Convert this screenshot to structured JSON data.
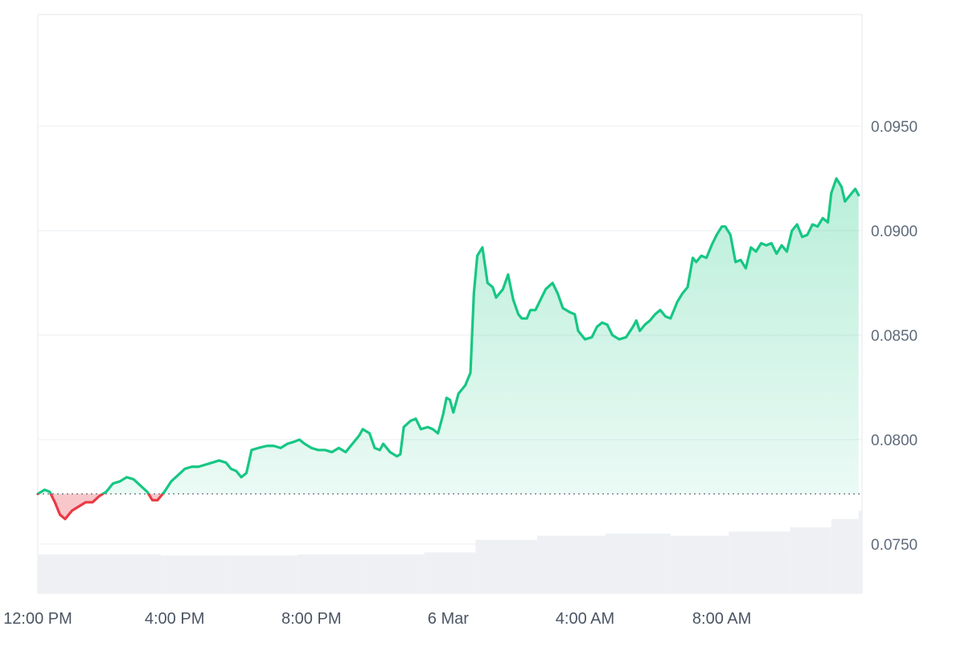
{
  "chart_data": {
    "type": "area",
    "title": "",
    "xlabel": "",
    "ylabel": "",
    "x_ticks": [
      "12:00 PM",
      "4:00 PM",
      "8:00 PM",
      "6 Mar",
      "4:00 AM",
      "8:00 AM"
    ],
    "x_tick_hours": [
      0,
      4,
      8,
      12,
      16,
      20
    ],
    "y_ticks": [
      "0.0950",
      "0.0900",
      "0.0850",
      "0.0800",
      "0.0750"
    ],
    "y_tick_values": [
      0.095,
      0.09,
      0.085,
      0.08,
      0.075
    ],
    "ylim": [
      0.07265,
      0.10035
    ],
    "xlim_hours": [
      0,
      24.1
    ],
    "grid": true,
    "legend": "none",
    "baseline": 0.0774,
    "colors": {
      "up_line": "#16c784",
      "up_fill_top": "#16c784",
      "down_line": "#ea3943",
      "down_fill": "#f6b4b8",
      "grid": "#eef0f3",
      "baseline_dots": "#6b7280",
      "volume": "#eef0f4",
      "frame": "#e5e7eb"
    },
    "series": [
      {
        "values": [
          [
            0.0,
            0.0774
          ],
          [
            0.2,
            0.0776
          ],
          [
            0.35,
            0.0775
          ],
          [
            0.5,
            0.077
          ],
          [
            0.65,
            0.0764
          ],
          [
            0.8,
            0.0762
          ],
          [
            1.0,
            0.0766
          ],
          [
            1.2,
            0.0768
          ],
          [
            1.4,
            0.077
          ],
          [
            1.6,
            0.077
          ],
          [
            1.8,
            0.0773
          ],
          [
            2.0,
            0.0775
          ],
          [
            2.2,
            0.0779
          ],
          [
            2.4,
            0.078
          ],
          [
            2.6,
            0.0782
          ],
          [
            2.8,
            0.0781
          ],
          [
            3.0,
            0.0778
          ],
          [
            3.2,
            0.0775
          ],
          [
            3.35,
            0.0771
          ],
          [
            3.5,
            0.0771
          ],
          [
            3.7,
            0.0775
          ],
          [
            3.9,
            0.078
          ],
          [
            4.1,
            0.0783
          ],
          [
            4.3,
            0.0786
          ],
          [
            4.5,
            0.0787
          ],
          [
            4.7,
            0.0787
          ],
          [
            4.9,
            0.0788
          ],
          [
            5.1,
            0.0789
          ],
          [
            5.3,
            0.079
          ],
          [
            5.5,
            0.0789
          ],
          [
            5.65,
            0.0786
          ],
          [
            5.8,
            0.0785
          ],
          [
            5.95,
            0.0782
          ],
          [
            6.1,
            0.0784
          ],
          [
            6.25,
            0.0795
          ],
          [
            6.45,
            0.0796
          ],
          [
            6.7,
            0.0797
          ],
          [
            6.9,
            0.0797
          ],
          [
            7.1,
            0.0796
          ],
          [
            7.3,
            0.0798
          ],
          [
            7.5,
            0.0799
          ],
          [
            7.65,
            0.08
          ],
          [
            7.8,
            0.0798
          ],
          [
            8.0,
            0.0796
          ],
          [
            8.2,
            0.0795
          ],
          [
            8.4,
            0.0795
          ],
          [
            8.6,
            0.0794
          ],
          [
            8.8,
            0.0796
          ],
          [
            9.0,
            0.0794
          ],
          [
            9.2,
            0.0798
          ],
          [
            9.4,
            0.0802
          ],
          [
            9.5,
            0.0805
          ],
          [
            9.7,
            0.0803
          ],
          [
            9.85,
            0.0796
          ],
          [
            10.0,
            0.0795
          ],
          [
            10.1,
            0.0798
          ],
          [
            10.3,
            0.0794
          ],
          [
            10.5,
            0.0792
          ],
          [
            10.6,
            0.0793
          ],
          [
            10.7,
            0.0806
          ],
          [
            10.9,
            0.0809
          ],
          [
            11.05,
            0.081
          ],
          [
            11.2,
            0.0805
          ],
          [
            11.4,
            0.0806
          ],
          [
            11.55,
            0.0805
          ],
          [
            11.7,
            0.0803
          ],
          [
            11.85,
            0.0812
          ],
          [
            11.95,
            0.082
          ],
          [
            12.05,
            0.0819
          ],
          [
            12.15,
            0.0813
          ],
          [
            12.3,
            0.0822
          ],
          [
            12.5,
            0.0826
          ],
          [
            12.65,
            0.0832
          ],
          [
            12.75,
            0.087
          ],
          [
            12.85,
            0.0888
          ],
          [
            13.0,
            0.0892
          ],
          [
            13.15,
            0.0875
          ],
          [
            13.3,
            0.0873
          ],
          [
            13.4,
            0.0868
          ],
          [
            13.6,
            0.0872
          ],
          [
            13.75,
            0.0879
          ],
          [
            13.9,
            0.0867
          ],
          [
            14.05,
            0.086
          ],
          [
            14.15,
            0.0858
          ],
          [
            14.3,
            0.0858
          ],
          [
            14.4,
            0.0862
          ],
          [
            14.55,
            0.0862
          ],
          [
            14.7,
            0.0867
          ],
          [
            14.85,
            0.0872
          ],
          [
            15.05,
            0.0875
          ],
          [
            15.2,
            0.087
          ],
          [
            15.35,
            0.0863
          ],
          [
            15.55,
            0.0861
          ],
          [
            15.7,
            0.086
          ],
          [
            15.8,
            0.0852
          ],
          [
            16.0,
            0.0848
          ],
          [
            16.2,
            0.0849
          ],
          [
            16.35,
            0.0854
          ],
          [
            16.5,
            0.0856
          ],
          [
            16.65,
            0.0855
          ],
          [
            16.8,
            0.085
          ],
          [
            17.0,
            0.0848
          ],
          [
            17.2,
            0.0849
          ],
          [
            17.4,
            0.0854
          ],
          [
            17.5,
            0.0857
          ],
          [
            17.6,
            0.0852
          ],
          [
            17.75,
            0.0855
          ],
          [
            17.9,
            0.0857
          ],
          [
            18.05,
            0.086
          ],
          [
            18.2,
            0.0862
          ],
          [
            18.35,
            0.0859
          ],
          [
            18.5,
            0.0858
          ],
          [
            18.7,
            0.0866
          ],
          [
            18.85,
            0.087
          ],
          [
            19.0,
            0.0873
          ],
          [
            19.15,
            0.0887
          ],
          [
            19.25,
            0.0885
          ],
          [
            19.4,
            0.0888
          ],
          [
            19.55,
            0.0887
          ],
          [
            19.7,
            0.0893
          ],
          [
            19.85,
            0.0898
          ],
          [
            20.0,
            0.0902
          ],
          [
            20.1,
            0.0902
          ],
          [
            20.25,
            0.0898
          ],
          [
            20.4,
            0.0885
          ],
          [
            20.55,
            0.0886
          ],
          [
            20.7,
            0.0882
          ],
          [
            20.85,
            0.0892
          ],
          [
            21.0,
            0.089
          ],
          [
            21.15,
            0.0894
          ],
          [
            21.3,
            0.0893
          ],
          [
            21.45,
            0.0894
          ],
          [
            21.6,
            0.0889
          ],
          [
            21.75,
            0.0893
          ],
          [
            21.9,
            0.089
          ],
          [
            22.05,
            0.09
          ],
          [
            22.2,
            0.0903
          ],
          [
            22.35,
            0.0897
          ],
          [
            22.5,
            0.0898
          ],
          [
            22.65,
            0.0903
          ],
          [
            22.8,
            0.0902
          ],
          [
            22.95,
            0.0906
          ],
          [
            23.1,
            0.0904
          ],
          [
            23.2,
            0.0918
          ],
          [
            23.35,
            0.0925
          ],
          [
            23.5,
            0.0921
          ],
          [
            23.6,
            0.0914
          ],
          [
            23.75,
            0.0917
          ],
          [
            23.9,
            0.092
          ],
          [
            24.0,
            0.0917
          ]
        ]
      }
    ],
    "volume": {
      "bars": [
        [
          0,
          0.0745
        ],
        [
          2,
          0.0745
        ],
        [
          3.6,
          0.07445
        ],
        [
          5.6,
          0.07445
        ],
        [
          7.6,
          0.0745
        ],
        [
          9.6,
          0.0745
        ],
        [
          11.3,
          0.0746
        ],
        [
          12.8,
          0.0752
        ],
        [
          14.6,
          0.0754
        ],
        [
          16.6,
          0.0755
        ],
        [
          18.5,
          0.0754
        ],
        [
          20.2,
          0.0756
        ],
        [
          22.0,
          0.0758
        ],
        [
          23.2,
          0.0762
        ],
        [
          24.0,
          0.0766
        ]
      ]
    }
  }
}
